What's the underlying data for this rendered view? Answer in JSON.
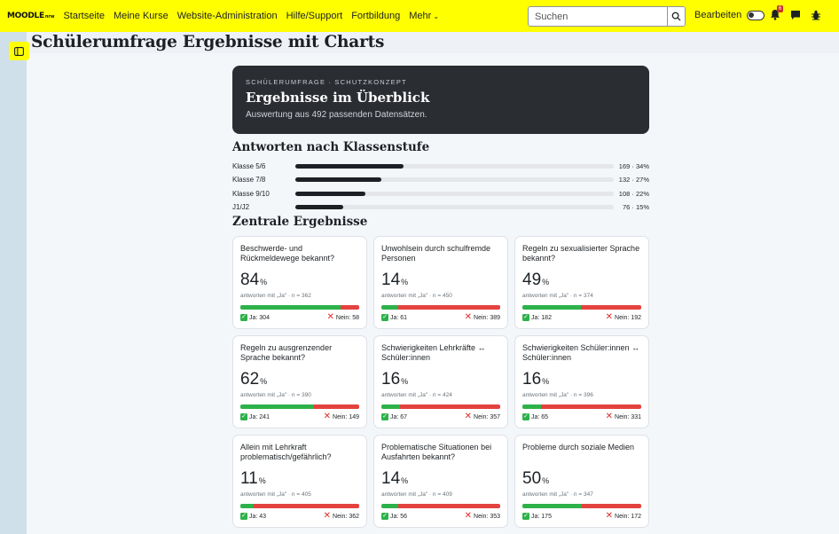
{
  "navbar": {
    "logo_main": "MOODLE",
    "logo_sub": "nrw",
    "links": [
      "Startseite",
      "Meine Kurse",
      "Website-Administration",
      "Hilfe/Support",
      "Fortbildung",
      "Mehr"
    ],
    "search_placeholder": "Suchen",
    "edit_label": "Bearbeiten",
    "notification_count": "6"
  },
  "page": {
    "title": "Schülerumfrage Ergebnisse mit Charts"
  },
  "hero": {
    "kicker": "Schülerumfrage · Schutzkonzept",
    "title": "Ergebnisse im Überblick",
    "subtitle": "Auswertung aus 492 passenden Datensätzen."
  },
  "classes": {
    "title": "Antworten nach Klassenstufe",
    "rows": [
      {
        "label": "Klasse 5/6",
        "value": "169 · 34%",
        "fraction": 0.34
      },
      {
        "label": "Klasse 7/8",
        "value": "132 · 27%",
        "fraction": 0.27
      },
      {
        "label": "Klasse 9/10",
        "value": "108 · 22%",
        "fraction": 0.22
      },
      {
        "label": "J1/J2",
        "value": "76 · 15%",
        "fraction": 0.15
      }
    ]
  },
  "results": {
    "title": "Zentrale Ergebnisse",
    "cards": [
      {
        "question": "Beschwerde- und Rückmeldewege bekannt?",
        "pct": "84",
        "unit": "%",
        "note": "antworten mit „Ja\" · n = 362",
        "yes": "Ja: 304",
        "no": "Nein: 58",
        "yes_fraction": 0.84
      },
      {
        "question": "Unwohlsein durch schulfremde Personen",
        "pct": "14",
        "unit": "%",
        "note": "antworten mit „Ja\" · n = 450",
        "yes": "Ja: 61",
        "no": "Nein: 389",
        "yes_fraction": 0.14
      },
      {
        "question": "Regeln zu sexualisierter Sprache bekannt?",
        "pct": "49",
        "unit": "%",
        "note": "antworten mit „Ja\" · n = 374",
        "yes": "Ja: 182",
        "no": "Nein: 192",
        "yes_fraction": 0.49
      },
      {
        "question": "Regeln zu ausgrenzender Sprache bekannt?",
        "pct": "62",
        "unit": "%",
        "note": "antworten mit „Ja\" · n = 390",
        "yes": "Ja: 241",
        "no": "Nein: 149",
        "yes_fraction": 0.62
      },
      {
        "question": "Schwierigkeiten Lehrkräfte ↔ Schüler:innen",
        "pct": "16",
        "unit": "%",
        "note": "antworten mit „Ja\" · n = 424",
        "yes": "Ja: 67",
        "no": "Nein: 357",
        "yes_fraction": 0.16
      },
      {
        "question": "Schwierigkeiten Schüler:innen ↔ Schüler:innen",
        "pct": "16",
        "unit": "%",
        "note": "antworten mit „Ja\" · n = 396",
        "yes": "Ja: 65",
        "no": "Nein: 331",
        "yes_fraction": 0.16
      },
      {
        "question": "Allein mit Lehrkraft problematisch/gefährlich?",
        "pct": "11",
        "unit": "%",
        "note": "antworten mit „Ja\" · n = 405",
        "yes": "Ja: 43",
        "no": "Nein: 362",
        "yes_fraction": 0.11
      },
      {
        "question": "Problematische Situationen bei Ausfahrten bekannt?",
        "pct": "14",
        "unit": "%",
        "note": "antworten mit „Ja\" · n = 409",
        "yes": "Ja: 56",
        "no": "Nein: 353",
        "yes_fraction": 0.14
      },
      {
        "question": "Probleme durch soziale Medien",
        "pct": "50",
        "unit": "%",
        "note": "antworten mit „Ja\" · n = 347",
        "yes": "Ja: 175",
        "no": "Nein: 172",
        "yes_fraction": 0.5
      }
    ]
  },
  "colors": {
    "navbar": "#ffff00",
    "yes": "#2db24a",
    "no": "#e4423f",
    "hero_bg": "#2a2d32"
  },
  "icons": [
    "search-icon",
    "bell-icon",
    "chat-icon",
    "bug-icon",
    "sidebar-toggle-icon",
    "check-icon",
    "cross-icon"
  ]
}
